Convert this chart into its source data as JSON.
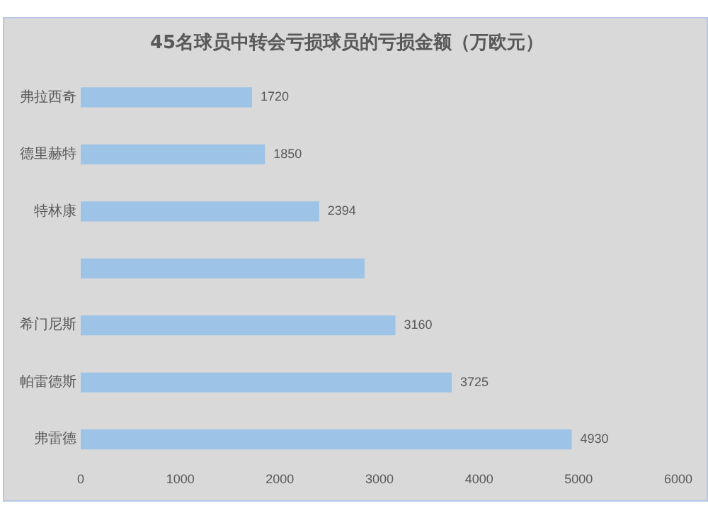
{
  "chart_data": {
    "type": "bar",
    "orientation": "horizontal",
    "title": "45名球员中转会亏损球员的亏损金额（万欧元）",
    "categories": [
      "弗拉西奇",
      "德里赫特",
      "特林康",
      null,
      "希门尼斯",
      "帕雷德斯",
      "弗雷德"
    ],
    "values": [
      1720,
      1850,
      2394,
      2850,
      3160,
      3725,
      4930
    ],
    "value_labels": [
      "1720",
      "1850",
      "2394",
      null,
      "3160",
      "3725",
      "4930"
    ],
    "color": "#9dc3e6",
    "xlim": [
      0,
      6000
    ],
    "xticks": [
      0,
      1000,
      2000,
      3000,
      4000,
      5000,
      6000
    ],
    "grid": false,
    "legend": false
  }
}
